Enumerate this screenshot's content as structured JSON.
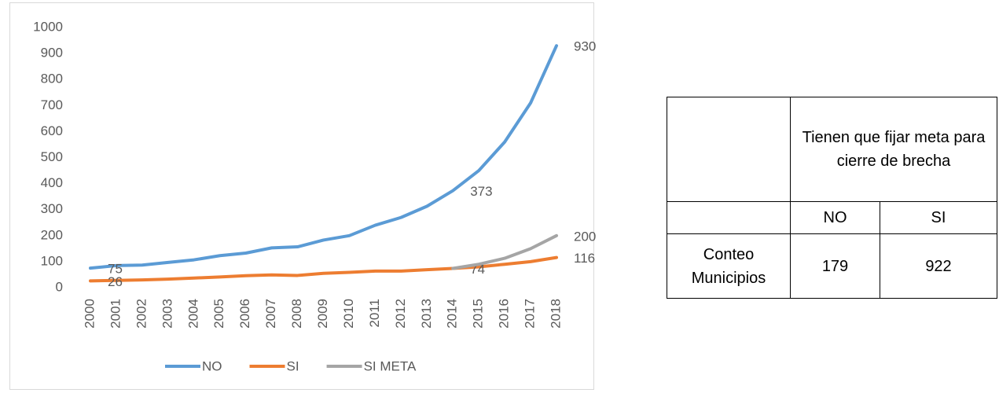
{
  "chart_data": {
    "type": "line",
    "x": [
      "2000",
      "2001",
      "2002",
      "2003",
      "2004",
      "2005",
      "2006",
      "2007",
      "2008",
      "2009",
      "2010",
      "2011",
      "2012",
      "2013",
      "2014",
      "2015",
      "2016",
      "2017",
      "2018"
    ],
    "series": [
      {
        "name": "NO",
        "color": "#5b9bd5",
        "values": [
          75,
          85,
          87,
          97,
          107,
          123,
          133,
          153,
          157,
          183,
          200,
          240,
          270,
          313,
          373,
          450,
          560,
          710,
          930
        ],
        "value_labels": [
          "75",
          null,
          null,
          null,
          null,
          null,
          null,
          null,
          null,
          null,
          null,
          null,
          null,
          null,
          "373",
          null,
          null,
          null,
          "930"
        ]
      },
      {
        "name": "SI",
        "color": "#ed7d31",
        "values": [
          26,
          28,
          30,
          33,
          37,
          41,
          46,
          49,
          47,
          55,
          59,
          64,
          64,
          69,
          74,
          80,
          90,
          100,
          116
        ],
        "value_labels": [
          "26",
          null,
          null,
          null,
          null,
          null,
          null,
          null,
          null,
          null,
          null,
          null,
          null,
          null,
          "74",
          null,
          null,
          null,
          "116"
        ]
      },
      {
        "name": "SI META",
        "color": "#a5a5a5",
        "values": [
          null,
          null,
          null,
          null,
          null,
          null,
          null,
          null,
          null,
          null,
          null,
          null,
          null,
          null,
          74,
          90,
          113,
          150,
          200
        ],
        "value_labels": [
          null,
          null,
          null,
          null,
          null,
          null,
          null,
          null,
          null,
          null,
          null,
          null,
          null,
          null,
          null,
          null,
          null,
          null,
          "200"
        ]
      }
    ],
    "ylim": [
      0,
      1000
    ],
    "yticks": [
      0,
      100,
      200,
      300,
      400,
      500,
      600,
      700,
      800,
      900,
      1000
    ],
    "grid": false,
    "legend": "bottom"
  },
  "table": {
    "header": "Tienen que fijar meta para cierre de brecha",
    "columns": [
      "NO",
      "SI"
    ],
    "rows": [
      [
        "Conteo Municipios",
        "179",
        "922"
      ]
    ]
  }
}
